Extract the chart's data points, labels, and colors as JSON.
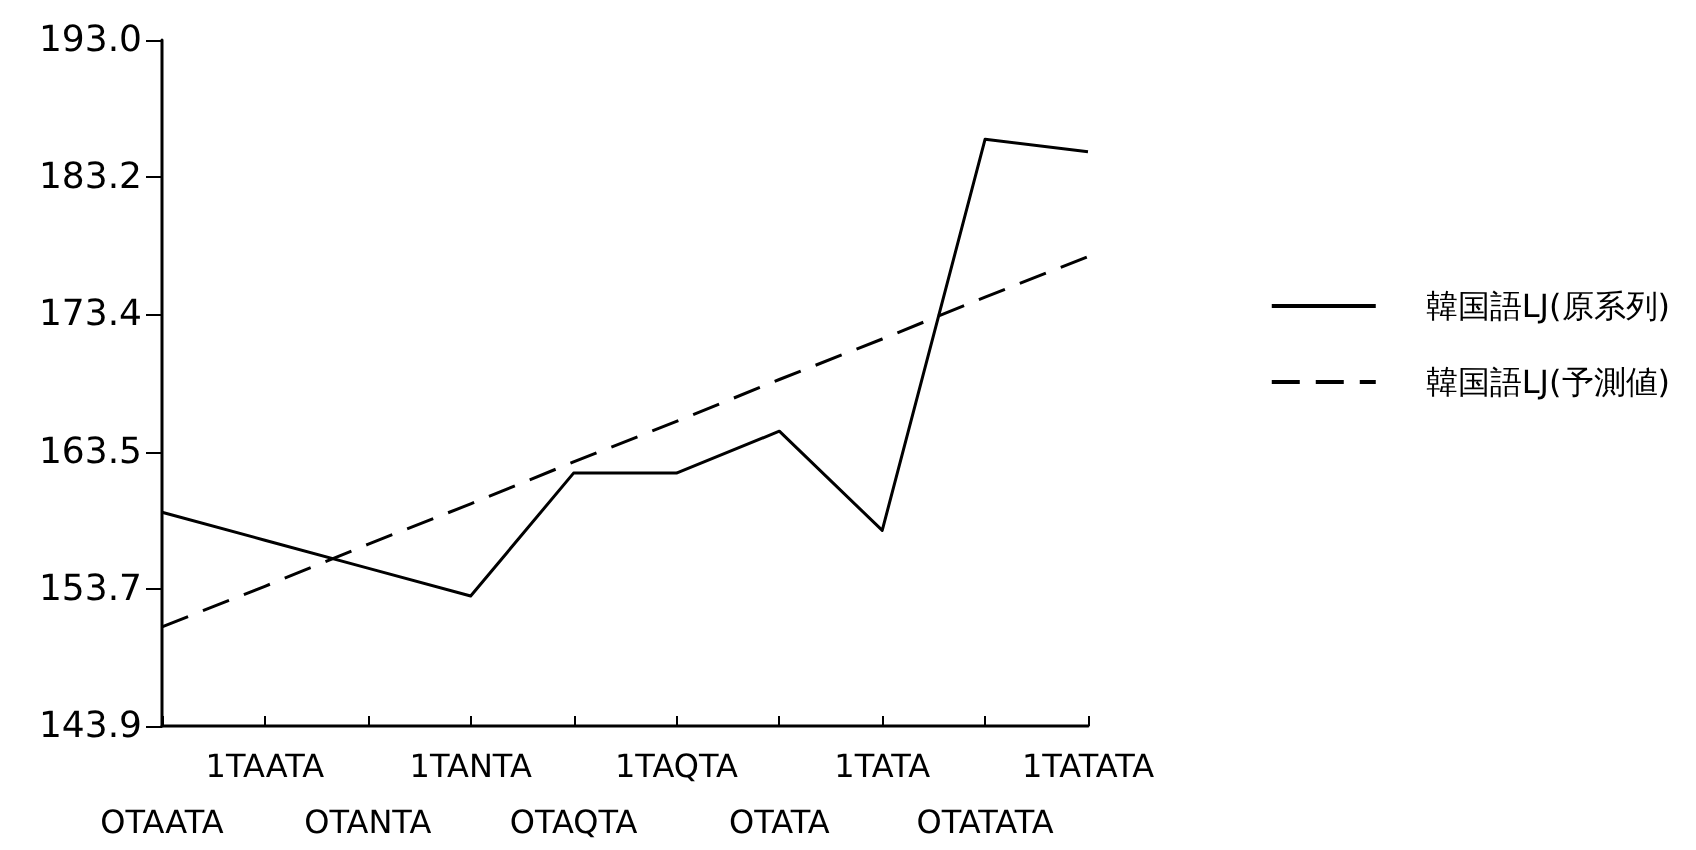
{
  "chart_data": {
    "type": "line",
    "categories": [
      "OTAATA",
      "1TAATA",
      "OTANTA",
      "1TANTA",
      "OTAQTA",
      "1TAQTA",
      "OTATA",
      "1TATA",
      "OTATATA",
      "1TATATA"
    ],
    "series": [
      {
        "name": "韓国語LJ(原系列)",
        "color": "#000000",
        "line_style": "solid",
        "values": [
          159.2,
          157.2,
          155.2,
          153.2,
          162.0,
          162.0,
          165.0,
          157.9,
          185.9,
          185.0
        ]
      },
      {
        "name": "韓国語LJ(予測値)",
        "color": "#000000",
        "line_style": "dashed",
        "values": [
          151.0,
          153.9,
          156.9,
          159.8,
          162.8,
          165.7,
          168.7,
          171.6,
          174.6,
          177.5
        ]
      }
    ],
    "ylim": [
      143.9,
      193.0
    ],
    "yticks": [
      143.9,
      153.7,
      163.5,
      173.4,
      183.2,
      {
        "value": 193,
        "label": "193.0"
      }
    ],
    "grid": false,
    "legend": "right",
    "marker": "none"
  }
}
